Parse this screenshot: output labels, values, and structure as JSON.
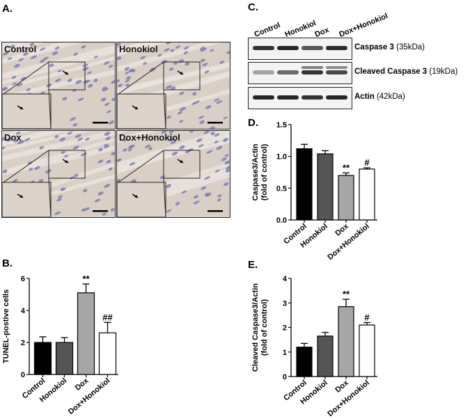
{
  "panels": {
    "a_letter": "A.",
    "b_letter": "B.",
    "c_letter": "C.",
    "d_letter": "D.",
    "e_letter": "E."
  },
  "micrographs": [
    {
      "label": "Control"
    },
    {
      "label": "Honokiol"
    },
    {
      "label": "Dox"
    },
    {
      "label": "Dox+Honokiol"
    }
  ],
  "blot": {
    "lanes": [
      "Control",
      "Honokiol",
      "Dox",
      "Dox+Honokiol"
    ],
    "rows": [
      {
        "name": "Caspase 3",
        "kda": "(35kDa)",
        "intensity": [
          0.85,
          0.9,
          0.7,
          0.88
        ]
      },
      {
        "name": "Cleaved Caspase 3",
        "kda": "(19kDa)",
        "intensity": [
          0.35,
          0.6,
          0.85,
          0.75
        ]
      },
      {
        "name": "Actin",
        "kda": "(42kDa)",
        "intensity": [
          0.9,
          0.9,
          0.85,
          0.9
        ]
      }
    ]
  },
  "colors": {
    "control": "#000000",
    "honokiol": "#555555",
    "dox": "#a6a6a6",
    "dox_honokiol": "#ffffff"
  },
  "chart_data": [
    {
      "id": "B",
      "type": "bar",
      "categories": [
        "Control",
        "Honokiol",
        "Dox",
        "Dox+Honokiol"
      ],
      "values": [
        2.0,
        2.0,
        5.1,
        2.6
      ],
      "errors": [
        0.35,
        0.3,
        0.55,
        0.65
      ],
      "annotations": [
        "",
        "",
        "**",
        "##"
      ],
      "title": "",
      "xlabel": "",
      "ylabel": "TUNEL-postive cells",
      "ylim": [
        0,
        6
      ],
      "yticks": [
        "0",
        "2",
        "4",
        "6"
      ]
    },
    {
      "id": "D",
      "type": "bar",
      "categories": [
        "Control",
        "Honokiol",
        "Dox",
        "Dox+Honokiol"
      ],
      "values": [
        1.12,
        1.04,
        0.7,
        0.8
      ],
      "errors": [
        0.07,
        0.05,
        0.04,
        0.02
      ],
      "annotations": [
        "",
        "",
        "**",
        "#"
      ],
      "title": "",
      "xlabel": "",
      "ylabel": "Caspase3/Actin\n(fold of control)",
      "ylim": [
        0,
        1.5
      ],
      "yticks": [
        "0.0",
        "0.5",
        "1.0",
        "1.5"
      ]
    },
    {
      "id": "E",
      "type": "bar",
      "categories": [
        "Control",
        "Honokiol",
        "Dox",
        "Dox+Honokiol"
      ],
      "values": [
        1.2,
        1.65,
        2.85,
        2.1
      ],
      "errors": [
        0.15,
        0.15,
        0.3,
        0.1
      ],
      "annotations": [
        "",
        "",
        "**",
        "#"
      ],
      "title": "",
      "xlabel": "",
      "ylabel": "Cleaved Caspase3/Actin\n(fold of control)",
      "ylim": [
        0,
        4
      ],
      "yticks": [
        "0",
        "1",
        "2",
        "3",
        "4"
      ]
    }
  ]
}
